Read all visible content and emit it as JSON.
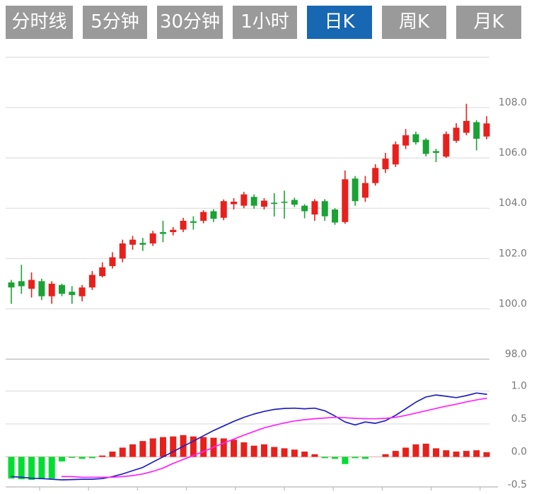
{
  "toolbar": {
    "buttons": [
      {
        "label": "分时线",
        "active": false
      },
      {
        "label": "5分钟",
        "active": false
      },
      {
        "label": "30分钟",
        "active": false
      },
      {
        "label": "1小时",
        "active": false
      },
      {
        "label": "日K",
        "active": true
      },
      {
        "label": "周K",
        "active": false
      },
      {
        "label": "月K",
        "active": false
      }
    ],
    "active_bg": "#1767b3",
    "inactive_bg": "#9a9a9a",
    "text_color": "#ffffff"
  },
  "colors": {
    "up": "#e8201c",
    "down": "#1aa334",
    "hist_up": "#e8201c",
    "hist_down": "#00dd33",
    "dif_line": "#2020c0",
    "dea_line": "#ff22ff",
    "grid": "#d8d8d8",
    "grid_strong": "#c3c3c3",
    "zero_line": "#e6b8b8",
    "axis_text": "#787878"
  },
  "chart_data": {
    "type": "candlestick+macd",
    "title": "",
    "legend_position": "none",
    "grid": true,
    "main_panel": {
      "ylabels": [
        {
          "text": "108.0",
          "price": 108.0
        },
        {
          "text": "106.0",
          "price": 106.0
        },
        {
          "text": "104.0",
          "price": 104.0
        },
        {
          "text": "102.0",
          "price": 102.0
        },
        {
          "text": "100.0",
          "price": 100.0
        },
        {
          "text": "98.0",
          "price": 98.0
        }
      ],
      "gridline_prices": [
        110,
        108,
        106,
        104,
        102,
        100,
        98
      ],
      "y_range": [
        98,
        110
      ],
      "candles_ohlc_format": [
        "open",
        "high",
        "low",
        "close"
      ],
      "candles": [
        [
          101.05,
          101.15,
          100.2,
          100.85
        ],
        [
          101.1,
          101.75,
          100.6,
          100.9
        ],
        [
          100.8,
          101.45,
          100.45,
          101.15
        ],
        [
          101.1,
          101.2,
          100.35,
          100.5
        ],
        [
          100.5,
          101.1,
          100.2,
          101.0
        ],
        [
          100.95,
          101.0,
          100.5,
          100.6
        ],
        [
          100.68,
          100.9,
          100.2,
          100.55
        ],
        [
          100.5,
          100.95,
          100.3,
          100.85
        ],
        [
          100.85,
          101.5,
          100.75,
          101.35
        ],
        [
          101.3,
          101.85,
          101.25,
          101.65
        ],
        [
          101.7,
          102.25,
          101.6,
          102.05
        ],
        [
          102.0,
          102.75,
          101.85,
          102.6
        ],
        [
          102.55,
          102.9,
          102.35,
          102.75
        ],
        [
          102.62,
          102.82,
          102.3,
          102.55
        ],
        [
          102.6,
          103.1,
          102.5,
          103.0
        ],
        [
          103.05,
          103.5,
          102.65,
          102.98
        ],
        [
          103.05,
          103.25,
          102.92,
          103.14
        ],
        [
          103.15,
          103.62,
          103.05,
          103.5
        ],
        [
          103.48,
          103.68,
          103.15,
          103.42
        ],
        [
          103.5,
          103.92,
          103.4,
          103.85
        ],
        [
          103.88,
          103.96,
          103.45,
          103.58
        ],
        [
          103.62,
          104.35,
          103.52,
          104.28
        ],
        [
          104.16,
          104.4,
          103.95,
          104.26
        ],
        [
          104.1,
          104.65,
          104.0,
          104.55
        ],
        [
          104.45,
          104.55,
          103.98,
          104.1
        ],
        [
          104.06,
          104.4,
          103.95,
          104.3
        ],
        [
          104.22,
          104.6,
          103.67,
          104.17
        ],
        [
          104.26,
          104.7,
          103.58,
          104.24
        ],
        [
          104.33,
          104.42,
          104.05,
          104.14
        ],
        [
          104.1,
          104.16,
          103.6,
          103.88
        ],
        [
          103.75,
          104.36,
          103.5,
          104.28
        ],
        [
          104.28,
          104.36,
          103.5,
          103.68
        ],
        [
          103.95,
          104.0,
          103.34,
          103.43
        ],
        [
          103.45,
          105.5,
          103.38,
          105.15
        ],
        [
          105.18,
          105.28,
          104.1,
          104.28
        ],
        [
          104.42,
          105.28,
          104.25,
          105.0
        ],
        [
          105.0,
          105.75,
          104.9,
          105.6
        ],
        [
          105.55,
          106.2,
          105.4,
          105.97
        ],
        [
          105.74,
          106.65,
          105.64,
          106.54
        ],
        [
          106.49,
          107.15,
          106.35,
          106.9
        ],
        [
          106.94,
          107.04,
          106.53,
          106.62
        ],
        [
          106.72,
          106.78,
          106.06,
          106.16
        ],
        [
          106.27,
          106.36,
          105.83,
          106.2
        ],
        [
          106.05,
          107.05,
          106.0,
          106.95
        ],
        [
          106.68,
          107.38,
          106.6,
          107.2
        ],
        [
          107.0,
          108.15,
          106.9,
          107.47
        ],
        [
          107.42,
          107.5,
          106.3,
          106.76
        ],
        [
          106.85,
          107.66,
          106.74,
          107.37
        ]
      ]
    },
    "macd_panel": {
      "ylabels": [
        {
          "text": "1.0",
          "value": 1.0
        },
        {
          "text": "0.5",
          "value": 0.5
        },
        {
          "text": "0.0",
          "value": 0.0
        },
        {
          "text": "-0.5",
          "value": -0.5
        }
      ],
      "gridline_values": [
        1.0,
        0.5
      ],
      "y_range": [
        -0.5,
        1.0
      ],
      "histogram": [
        -0.33,
        -0.34,
        -0.35,
        -0.34,
        -0.33,
        -0.07,
        -0.01,
        -0.03,
        -0.02,
        0.02,
        0.08,
        0.14,
        0.19,
        0.24,
        0.28,
        0.3,
        0.31,
        0.33,
        0.31,
        0.3,
        0.29,
        0.28,
        0.26,
        0.22,
        0.17,
        0.19,
        0.15,
        0.13,
        0.11,
        0.08,
        0.04,
        -0.02,
        -0.03,
        -0.11,
        -0.02,
        -0.03,
        0.0,
        0.04,
        0.09,
        0.14,
        0.19,
        0.2,
        0.13,
        0.1,
        0.08,
        0.09,
        0.1,
        0.07
      ],
      "dif": [
        -0.3,
        -0.31,
        -0.325,
        -0.33,
        -0.34,
        -0.35,
        -0.345,
        -0.34,
        -0.34,
        -0.33,
        -0.3,
        -0.26,
        -0.21,
        -0.16,
        -0.08,
        0.0,
        0.08,
        0.16,
        0.24,
        0.32,
        0.4,
        0.47,
        0.54,
        0.6,
        0.65,
        0.69,
        0.72,
        0.735,
        0.74,
        0.73,
        0.74,
        0.7,
        0.62,
        0.53,
        0.485,
        0.53,
        0.51,
        0.55,
        0.63,
        0.73,
        0.83,
        0.91,
        0.94,
        0.92,
        0.9,
        0.93,
        0.97,
        0.95
      ],
      "dea": [
        null,
        null,
        null,
        null,
        null,
        -0.3,
        -0.3,
        -0.31,
        -0.31,
        -0.31,
        -0.31,
        -0.3,
        -0.285,
        -0.26,
        -0.22,
        -0.17,
        -0.1,
        -0.04,
        0.02,
        0.08,
        0.145,
        0.21,
        0.27,
        0.33,
        0.385,
        0.44,
        0.48,
        0.515,
        0.545,
        0.565,
        0.58,
        0.59,
        0.6,
        0.595,
        0.585,
        0.58,
        0.578,
        0.585,
        0.6,
        0.63,
        0.665,
        0.7,
        0.735,
        0.77,
        0.8,
        0.835,
        0.865,
        0.89
      ]
    }
  }
}
